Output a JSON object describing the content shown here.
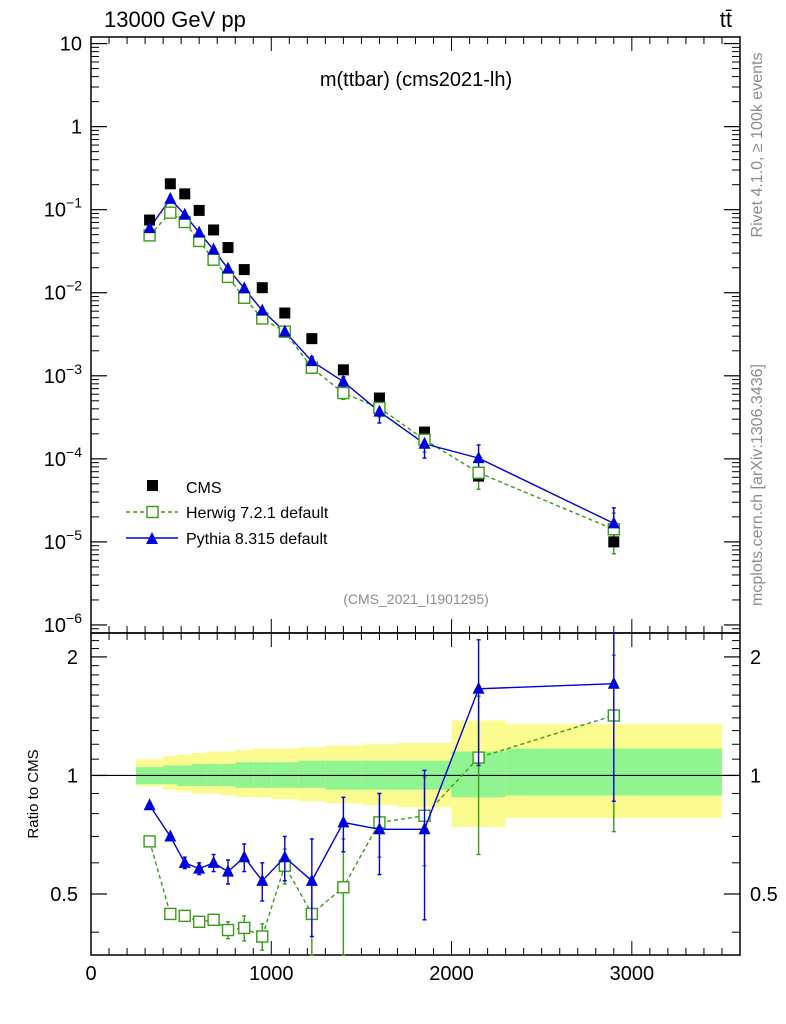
{
  "header": {
    "energy_label": "13000 GeV pp",
    "process_label": "tt̄",
    "plot_title": "m(ttbar) (cms2021-lh)",
    "analysis_id": "(CMS_2021_I1901295)"
  },
  "side_labels": {
    "rivet": "Rivet 4.1.0, ≥ 100k events",
    "mcplots": "mcplots.cern.ch [arXiv:1306.3436]"
  },
  "ratio_ylabel": "Ratio to CMS",
  "colors": {
    "cms": "#000000",
    "herwig": "#3a9a1a",
    "pythia": "#0000dd",
    "band_inner": "#90f590",
    "band_outer": "#fbfb90"
  },
  "chart_data": [
    {
      "type": "scatter",
      "panel": "main",
      "title": "m(ttbar) (cms2021-lh)",
      "yscale": "log",
      "ylim": [
        8e-07,
        12
      ],
      "xlim": [
        0,
        3600
      ],
      "ytick_labels": [
        "10",
        "1",
        "10^-1",
        "10^-2",
        "10^-3",
        "10^-4",
        "10^-5",
        "10^-6"
      ],
      "legend_position": "bottom-left",
      "legend": [
        "CMS",
        "Herwig 7.2.1 default",
        "Pythia 8.315 default"
      ],
      "x": [
        325,
        440,
        520,
        600,
        680,
        760,
        850,
        950,
        1075,
        1225,
        1400,
        1600,
        1850,
        2150,
        2900
      ],
      "series": [
        {
          "name": "CMS",
          "style": "black-squares",
          "values": [
            0.075,
            0.205,
            0.155,
            0.098,
            0.057,
            0.035,
            0.019,
            0.0115,
            0.0057,
            0.0028,
            0.00118,
            0.00054,
            0.00021,
            6.2e-05,
            1e-05
          ],
          "err_low": [
            0,
            0,
            0,
            0,
            0,
            0,
            0,
            0,
            0,
            0,
            0,
            0,
            0,
            0,
            0
          ],
          "err_high": [
            0,
            0,
            0,
            0,
            0,
            0,
            0,
            0,
            0,
            0,
            0,
            0,
            0,
            0,
            0
          ]
        },
        {
          "name": "Herwig 7.2.1 default",
          "style": "green-dashed-open-squares",
          "values": [
            0.049,
            0.092,
            0.071,
            0.042,
            0.025,
            0.0155,
            0.0087,
            0.0049,
            0.0034,
            0.00125,
            0.00062,
            0.00041,
            0.00017,
            6.8e-05,
            1.42e-05
          ],
          "err_low": [
            0,
            0,
            0,
            0,
            0,
            0,
            0,
            0,
            0,
            0,
            0.0001,
            9e-05,
            5e-05,
            2.5e-05,
            7e-06
          ],
          "err_high": [
            0,
            0,
            0,
            0,
            0,
            0,
            0,
            0,
            0,
            0,
            0.0001,
            9e-05,
            5e-05,
            2.5e-05,
            8e-06
          ]
        },
        {
          "name": "Pythia 8.315 default",
          "style": "blue-solid-triangles",
          "values": [
            0.06,
            0.135,
            0.087,
            0.053,
            0.033,
            0.0195,
            0.0113,
            0.0061,
            0.0034,
            0.0015,
            0.00085,
            0.00037,
            0.000152,
            0.000102,
            1.67e-05
          ],
          "err_low": [
            0,
            0,
            0,
            0,
            0,
            0,
            0,
            0,
            0,
            0.0002,
            0.00012,
            0.0001,
            5e-05,
            3.5e-05,
            7e-06
          ],
          "err_high": [
            0,
            0,
            0,
            0,
            0,
            0,
            0,
            0,
            0,
            0.0002,
            0.00012,
            0.0001,
            6e-05,
            4.5e-05,
            9e-06
          ]
        }
      ]
    },
    {
      "type": "scatter",
      "panel": "ratio",
      "ylabel": "Ratio to CMS",
      "ylim": [
        0.35,
        2.3
      ],
      "xlim": [
        0,
        3600
      ],
      "yticks": [
        0.5,
        1,
        2
      ],
      "xticks": [
        0,
        1000,
        2000,
        3000
      ],
      "x": [
        325,
        440,
        520,
        600,
        680,
        760,
        850,
        950,
        1075,
        1225,
        1400,
        1600,
        1850,
        2150,
        2900
      ],
      "bands": {
        "edges": [
          250,
          400,
          480,
          560,
          640,
          720,
          800,
          900,
          1000,
          1150,
          1300,
          1500,
          1700,
          2000,
          2300,
          3500
        ],
        "inner_low": [
          0.95,
          0.95,
          0.94,
          0.94,
          0.94,
          0.94,
          0.93,
          0.93,
          0.93,
          0.93,
          0.92,
          0.92,
          0.92,
          0.88,
          0.89
        ],
        "inner_high": [
          1.05,
          1.06,
          1.06,
          1.07,
          1.07,
          1.07,
          1.08,
          1.08,
          1.08,
          1.09,
          1.09,
          1.09,
          1.09,
          1.15,
          1.17
        ],
        "outer_low": [
          0.94,
          0.92,
          0.91,
          0.9,
          0.9,
          0.89,
          0.88,
          0.88,
          0.87,
          0.86,
          0.85,
          0.84,
          0.83,
          0.74,
          0.78
        ],
        "outer_high": [
          1.1,
          1.12,
          1.13,
          1.14,
          1.15,
          1.15,
          1.16,
          1.17,
          1.17,
          1.18,
          1.19,
          1.2,
          1.21,
          1.38,
          1.35
        ]
      },
      "series": [
        {
          "name": "Herwig 7.2.1 default",
          "values": [
            0.68,
            0.445,
            0.44,
            0.425,
            0.43,
            0.405,
            0.41,
            0.39,
            0.59,
            0.445,
            0.52,
            0.76,
            0.79,
            1.11,
            1.42
          ],
          "err_low": [
            0,
            0,
            0,
            0,
            0.01,
            0.02,
            0.03,
            0.03,
            0.06,
            0.1,
            0.17,
            0.14,
            0.2,
            0.48,
            0.7
          ],
          "err_high": [
            0,
            0,
            0,
            0,
            0.01,
            0.02,
            0.03,
            0.03,
            0.06,
            0.1,
            0.17,
            0.14,
            0.2,
            0.48,
            0.6
          ]
        },
        {
          "name": "Pythia 8.315 default",
          "values": [
            0.84,
            0.7,
            0.6,
            0.58,
            0.6,
            0.57,
            0.62,
            0.54,
            0.62,
            0.54,
            0.76,
            0.73,
            0.73,
            1.66,
            1.71
          ],
          "err_low": [
            0,
            0,
            0.02,
            0.02,
            0.03,
            0.04,
            0.05,
            0.06,
            0.08,
            0.15,
            0.12,
            0.17,
            0.3,
            0.6,
            0.85
          ],
          "err_high": [
            0,
            0,
            0.02,
            0.02,
            0.03,
            0.04,
            0.05,
            0.06,
            0.08,
            0.15,
            0.12,
            0.17,
            0.3,
            0.55,
            0.7
          ]
        }
      ]
    }
  ]
}
